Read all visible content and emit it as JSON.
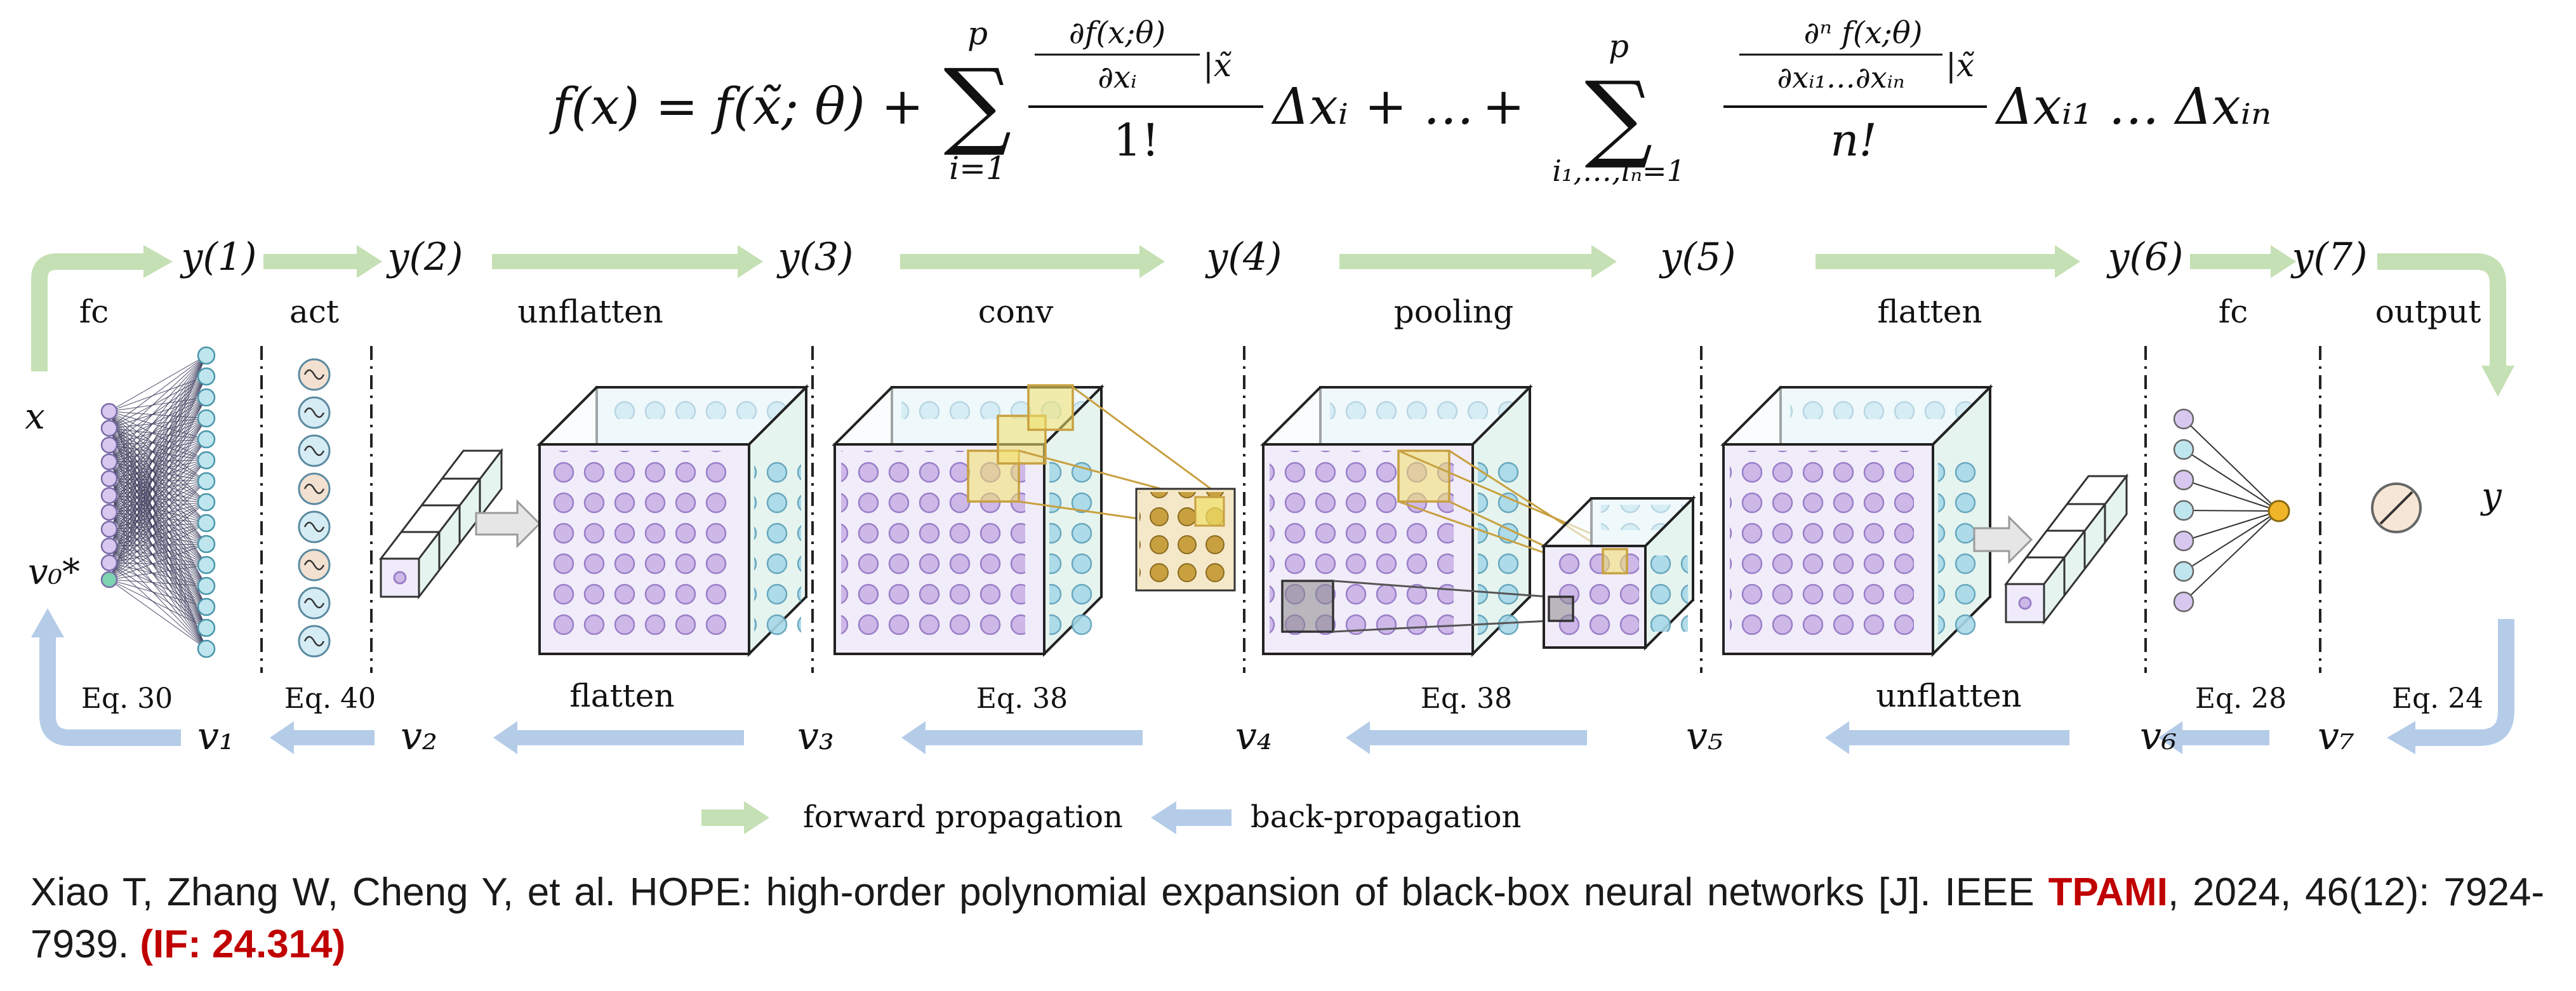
{
  "formula": {
    "lhs": "f(x) = f(x̃; θ) +",
    "sum1_top": "p",
    "sum1_bottom": "i=1",
    "frac1_num": "∂f(x;θ)",
    "frac1_num_den": "∂xᵢ",
    "frac1_eval": "|x̃",
    "frac1_den": "1!",
    "term1_tail": "Δxᵢ + …",
    "plus": "+",
    "sum2_top": "p",
    "sum2_bottom": "i₁,…,iₙ=1",
    "frac2_num": "∂ⁿ f(x;θ)",
    "frac2_num_den": "∂xᵢ₁…∂xᵢₙ",
    "frac2_eval": "|x̃",
    "frac2_den": "n!",
    "term2_tail": "Δxᵢ₁ … Δxᵢₙ"
  },
  "forward_outputs": [
    "y(1)",
    "y(2)",
    "y(3)",
    "y(4)",
    "y(5)",
    "y(6)",
    "y(7)"
  ],
  "layers": [
    "fc",
    "act",
    "unflatten",
    "conv",
    "pooling",
    "flatten",
    "fc",
    "output"
  ],
  "input_label": "x",
  "output_label": "y",
  "v0_label": "v₀*",
  "backward_vars": [
    "v₁",
    "v₂",
    "v₃",
    "v₄",
    "v₅",
    "v₆",
    "v₇"
  ],
  "back_labels": [
    "Eq. 30",
    "Eq. 40",
    "flatten",
    "Eq. 38",
    "Eq. 38",
    "unflatten",
    "Eq. 28",
    "Eq. 24"
  ],
  "legend": {
    "forward": "forward propagation",
    "backward": "back-propagation"
  },
  "citation": {
    "text_before": "Xiao T, Zhang W, Cheng Y, et al. HOPE: high-order polynomial expansion of black-box neural networks [J]. IEEE ",
    "venue": "TPAMI",
    "text_after": ", 2024, 46(12): 7924-7939. ",
    "impact": "(IF: 24.314)"
  },
  "colors": {
    "forward_arrow": "#c5e0b4",
    "backward_arrow": "#b4cce8",
    "purple_dot": "#cdb8e8",
    "teal_dot": "#9fd8c8",
    "blue_dot": "#a8d8e8",
    "highlight": "#e8c878",
    "orange_dot": "#f0b429",
    "citation_red": "#c00000"
  }
}
